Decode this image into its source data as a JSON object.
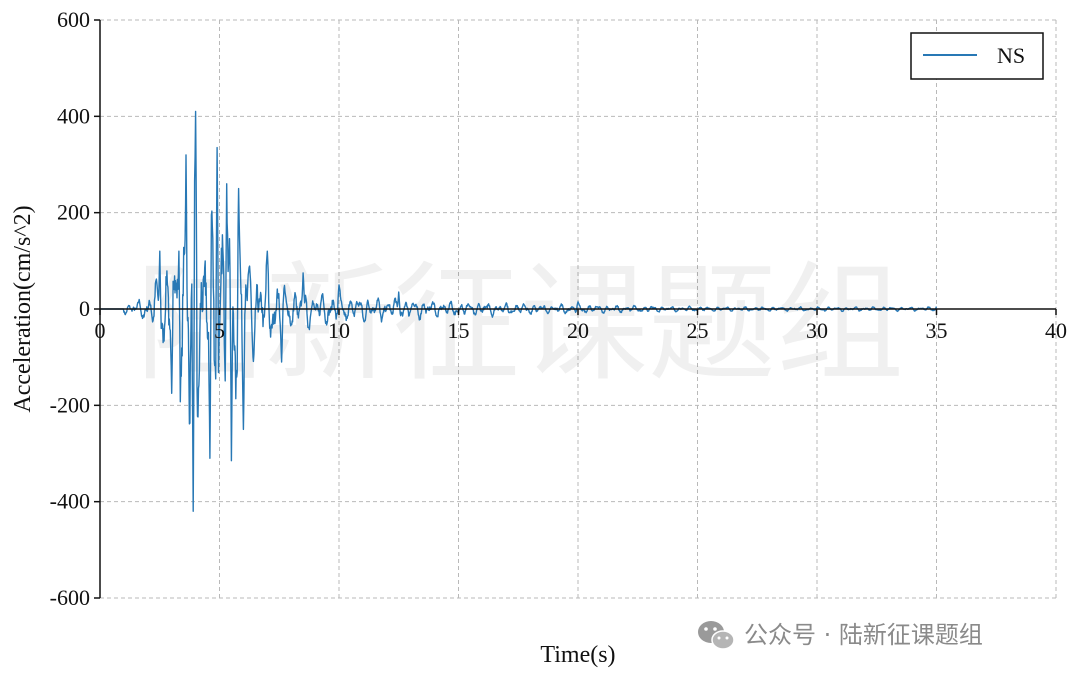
{
  "chart_data": {
    "type": "line",
    "title": "",
    "xlabel": "Time(s)",
    "ylabel": "Acceleration(cm/s^2)",
    "xlim": [
      0,
      40
    ],
    "ylim": [
      -600,
      600
    ],
    "xticks": [
      0,
      5,
      10,
      15,
      20,
      25,
      30,
      35,
      40
    ],
    "yticks": [
      600,
      400,
      200,
      0,
      -200,
      -400,
      -600
    ],
    "grid": true,
    "grid_style": "dashed",
    "legend": "top-right",
    "colors": {
      "series": "#2878b5",
      "grid": "#b9b9b9",
      "axis": "#111111"
    },
    "series": [
      {
        "name": "NS",
        "duration": 35,
        "peaks": [
          {
            "t": 2.5,
            "v": 120
          },
          {
            "t": 3.0,
            "v": -175
          },
          {
            "t": 3.3,
            "v": 120
          },
          {
            "t": 3.6,
            "v": 320
          },
          {
            "t": 3.75,
            "v": -280
          },
          {
            "t": 4.0,
            "v": 410
          },
          {
            "t": 3.9,
            "v": -420
          },
          {
            "t": 4.6,
            "v": -310
          },
          {
            "t": 4.9,
            "v": 335
          },
          {
            "t": 5.3,
            "v": 260
          },
          {
            "t": 5.5,
            "v": -315
          },
          {
            "t": 5.8,
            "v": 250
          },
          {
            "t": 6.0,
            "v": -250
          },
          {
            "t": 7.0,
            "v": 120
          },
          {
            "t": 7.6,
            "v": -110
          },
          {
            "t": 8.5,
            "v": 75
          },
          {
            "t": 10.0,
            "v": 50
          },
          {
            "t": 12.5,
            "v": 35
          },
          {
            "t": 20.0,
            "v": 15
          },
          {
            "t": 35.0,
            "v": 5
          }
        ]
      }
    ]
  },
  "watermark": {
    "background_text": "陆新征课题组",
    "footer_text": "公众号 · 陆新征课题组",
    "icon": "wechat-icon"
  }
}
